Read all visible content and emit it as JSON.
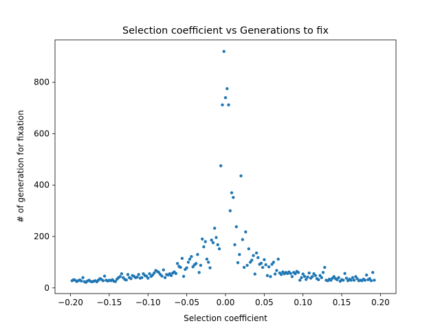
{
  "chart_data": {
    "type": "scatter",
    "title": "Selection coefficient vs Generations to fix",
    "xlabel": "Selection coefficient",
    "ylabel": "# of generation for fixation",
    "xlim": [
      -0.22,
      0.22
    ],
    "ylim": [
      -22,
      965
    ],
    "xticks": [
      -0.2,
      -0.15,
      -0.1,
      -0.05,
      0.0,
      0.05,
      0.1,
      0.15,
      0.2
    ],
    "xtick_labels": [
      "−0.20",
      "−0.15",
      "−0.10",
      "−0.05",
      "0.00",
      "0.05",
      "0.10",
      "0.15",
      "0.20"
    ],
    "yticks": [
      0,
      200,
      400,
      600,
      800
    ],
    "ytick_labels": [
      "0",
      "200",
      "400",
      "600",
      "800"
    ],
    "grid": false,
    "legend": false,
    "marker_color": "#1f77b4",
    "series": [
      {
        "points": [
          [
            -0.198,
            28
          ],
          [
            -0.196,
            32
          ],
          [
            -0.194,
            30
          ],
          [
            -0.192,
            25
          ],
          [
            -0.19,
            28
          ],
          [
            -0.188,
            31
          ],
          [
            -0.186,
            27
          ],
          [
            -0.184,
            40
          ],
          [
            -0.182,
            24
          ],
          [
            -0.18,
            22
          ],
          [
            -0.178,
            27
          ],
          [
            -0.176,
            30
          ],
          [
            -0.174,
            25
          ],
          [
            -0.172,
            24
          ],
          [
            -0.17,
            26
          ],
          [
            -0.168,
            28
          ],
          [
            -0.166,
            24
          ],
          [
            -0.164,
            30
          ],
          [
            -0.162,
            36
          ],
          [
            -0.16,
            33
          ],
          [
            -0.158,
            28
          ],
          [
            -0.156,
            46
          ],
          [
            -0.154,
            30
          ],
          [
            -0.152,
            27
          ],
          [
            -0.15,
            30
          ],
          [
            -0.148,
            28
          ],
          [
            -0.146,
            32
          ],
          [
            -0.144,
            26
          ],
          [
            -0.142,
            25
          ],
          [
            -0.14,
            34
          ],
          [
            -0.138,
            40
          ],
          [
            -0.136,
            44
          ],
          [
            -0.134,
            55
          ],
          [
            -0.132,
            40
          ],
          [
            -0.13,
            33
          ],
          [
            -0.128,
            31
          ],
          [
            -0.126,
            52
          ],
          [
            -0.124,
            40
          ],
          [
            -0.122,
            36
          ],
          [
            -0.12,
            48
          ],
          [
            -0.118,
            45
          ],
          [
            -0.116,
            40
          ],
          [
            -0.114,
            42
          ],
          [
            -0.112,
            52
          ],
          [
            -0.11,
            38
          ],
          [
            -0.108,
            40
          ],
          [
            -0.106,
            55
          ],
          [
            -0.104,
            48
          ],
          [
            -0.102,
            46
          ],
          [
            -0.1,
            38
          ],
          [
            -0.098,
            55
          ],
          [
            -0.096,
            45
          ],
          [
            -0.094,
            50
          ],
          [
            -0.092,
            58
          ],
          [
            -0.09,
            68
          ],
          [
            -0.088,
            64
          ],
          [
            -0.086,
            60
          ],
          [
            -0.084,
            52
          ],
          [
            -0.082,
            46
          ],
          [
            -0.08,
            70
          ],
          [
            -0.078,
            40
          ],
          [
            -0.076,
            52
          ],
          [
            -0.074,
            50
          ],
          [
            -0.072,
            55
          ],
          [
            -0.07,
            48
          ],
          [
            -0.068,
            58
          ],
          [
            -0.066,
            62
          ],
          [
            -0.064,
            56
          ],
          [
            -0.062,
            95
          ],
          [
            -0.06,
            84
          ],
          [
            -0.058,
            80
          ],
          [
            -0.056,
            115
          ],
          [
            -0.054,
            45
          ],
          [
            -0.052,
            72
          ],
          [
            -0.05,
            78
          ],
          [
            -0.048,
            100
          ],
          [
            -0.046,
            112
          ],
          [
            -0.044,
            122
          ],
          [
            -0.042,
            82
          ],
          [
            -0.04,
            90
          ],
          [
            -0.038,
            95
          ],
          [
            -0.036,
            130
          ],
          [
            -0.034,
            60
          ],
          [
            -0.032,
            88
          ],
          [
            -0.03,
            190
          ],
          [
            -0.028,
            160
          ],
          [
            -0.026,
            180
          ],
          [
            -0.024,
            112
          ],
          [
            -0.022,
            100
          ],
          [
            -0.02,
            78
          ],
          [
            -0.018,
            186
          ],
          [
            -0.016,
            176
          ],
          [
            -0.014,
            232
          ],
          [
            -0.012,
            196
          ],
          [
            -0.01,
            168
          ],
          [
            -0.008,
            152
          ],
          [
            -0.006,
            475
          ],
          [
            -0.004,
            712
          ],
          [
            -0.002,
            920
          ],
          [
            0.0,
            740
          ],
          [
            0.002,
            775
          ],
          [
            0.004,
            712
          ],
          [
            0.006,
            300
          ],
          [
            0.008,
            370
          ],
          [
            0.01,
            352
          ],
          [
            0.012,
            168
          ],
          [
            0.014,
            238
          ],
          [
            0.016,
            98
          ],
          [
            0.018,
            130
          ],
          [
            0.02,
            436
          ],
          [
            0.022,
            188
          ],
          [
            0.024,
            80
          ],
          [
            0.026,
            218
          ],
          [
            0.028,
            88
          ],
          [
            0.03,
            152
          ],
          [
            0.032,
            100
          ],
          [
            0.034,
            108
          ],
          [
            0.036,
            126
          ],
          [
            0.038,
            54
          ],
          [
            0.04,
            136
          ],
          [
            0.042,
            118
          ],
          [
            0.044,
            92
          ],
          [
            0.046,
            96
          ],
          [
            0.048,
            80
          ],
          [
            0.05,
            110
          ],
          [
            0.052,
            90
          ],
          [
            0.054,
            48
          ],
          [
            0.056,
            82
          ],
          [
            0.058,
            44
          ],
          [
            0.06,
            92
          ],
          [
            0.062,
            100
          ],
          [
            0.064,
            54
          ],
          [
            0.066,
            68
          ],
          [
            0.068,
            112
          ],
          [
            0.07,
            58
          ],
          [
            0.072,
            52
          ],
          [
            0.074,
            62
          ],
          [
            0.076,
            55
          ],
          [
            0.078,
            60
          ],
          [
            0.08,
            56
          ],
          [
            0.082,
            62
          ],
          [
            0.084,
            56
          ],
          [
            0.086,
            44
          ],
          [
            0.088,
            60
          ],
          [
            0.09,
            55
          ],
          [
            0.092,
            64
          ],
          [
            0.094,
            60
          ],
          [
            0.096,
            30
          ],
          [
            0.098,
            40
          ],
          [
            0.1,
            54
          ],
          [
            0.102,
            45
          ],
          [
            0.104,
            33
          ],
          [
            0.106,
            42
          ],
          [
            0.108,
            58
          ],
          [
            0.11,
            38
          ],
          [
            0.112,
            44
          ],
          [
            0.114,
            55
          ],
          [
            0.116,
            48
          ],
          [
            0.118,
            36
          ],
          [
            0.12,
            32
          ],
          [
            0.122,
            48
          ],
          [
            0.124,
            40
          ],
          [
            0.126,
            60
          ],
          [
            0.128,
            80
          ],
          [
            0.13,
            30
          ],
          [
            0.132,
            28
          ],
          [
            0.134,
            34
          ],
          [
            0.136,
            30
          ],
          [
            0.138,
            38
          ],
          [
            0.14,
            44
          ],
          [
            0.142,
            36
          ],
          [
            0.144,
            32
          ],
          [
            0.146,
            40
          ],
          [
            0.148,
            26
          ],
          [
            0.15,
            32
          ],
          [
            0.152,
            30
          ],
          [
            0.154,
            56
          ],
          [
            0.156,
            38
          ],
          [
            0.158,
            28
          ],
          [
            0.16,
            34
          ],
          [
            0.162,
            30
          ],
          [
            0.164,
            40
          ],
          [
            0.166,
            30
          ],
          [
            0.168,
            44
          ],
          [
            0.17,
            36
          ],
          [
            0.172,
            28
          ],
          [
            0.174,
            30
          ],
          [
            0.176,
            28
          ],
          [
            0.178,
            34
          ],
          [
            0.18,
            30
          ],
          [
            0.182,
            50
          ],
          [
            0.184,
            32
          ],
          [
            0.186,
            36
          ],
          [
            0.188,
            28
          ],
          [
            0.19,
            60
          ],
          [
            0.192,
            30
          ]
        ]
      }
    ]
  }
}
